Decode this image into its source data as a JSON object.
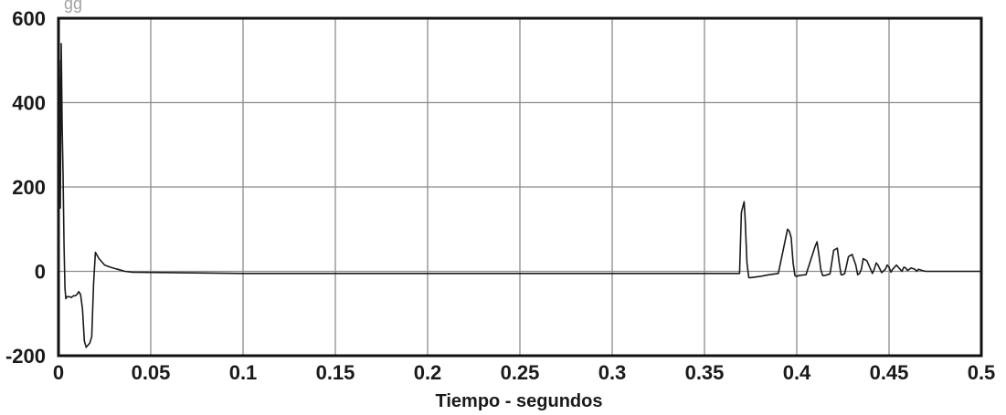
{
  "chart_data": {
    "type": "line",
    "title": "",
    "top_fragment": "gg",
    "xlabel": "Tiempo - segundos",
    "ylabel": "",
    "xlim": [
      0,
      0.5
    ],
    "ylim": [
      -200,
      600
    ],
    "grid": true,
    "legend": "none",
    "x_ticks": [
      0,
      0.05,
      0.1,
      0.15,
      0.2,
      0.25,
      0.3,
      0.35,
      0.4,
      0.45,
      0.5
    ],
    "x_tick_labels": [
      "0",
      "0.05",
      "0.1",
      "0.15",
      "0.2",
      "0.25",
      "0.3",
      "0.35",
      "0.4",
      "0.45",
      "0.5"
    ],
    "y_ticks": [
      -200,
      0,
      200,
      400,
      600
    ],
    "y_tick_labels": [
      "-200",
      "0",
      "200",
      "400",
      "600"
    ],
    "colors": {
      "line": "#1a1a1a",
      "grid": "#8c8c8c",
      "frame": "#111111"
    },
    "series": [
      {
        "x": [
          0,
          0.0005,
          0.001,
          0.0015,
          0.002,
          0.0025,
          0.003,
          0.0035,
          0.004,
          0.0045,
          0.005,
          0.006,
          0.007,
          0.008,
          0.009,
          0.01,
          0.011,
          0.012,
          0.013,
          0.014,
          0.015,
          0.016,
          0.017,
          0.018,
          0.019,
          0.02,
          0.022,
          0.025,
          0.028,
          0.032,
          0.036,
          0.04,
          0.1,
          0.2,
          0.3,
          0.36,
          0.369,
          0.37,
          0.3715,
          0.372,
          0.373,
          0.374,
          0.375,
          0.38,
          0.385,
          0.39,
          0.395,
          0.396,
          0.397,
          0.398,
          0.399,
          0.4,
          0.401,
          0.405,
          0.41,
          0.411,
          0.412,
          0.413,
          0.414,
          0.415,
          0.418,
          0.42,
          0.422,
          0.423,
          0.424,
          0.425,
          0.426,
          0.428,
          0.43,
          0.432,
          0.433,
          0.434,
          0.435,
          0.436,
          0.438,
          0.44,
          0.441,
          0.442,
          0.443,
          0.444,
          0.446,
          0.448,
          0.449,
          0.45,
          0.451,
          0.452,
          0.454,
          0.456,
          0.457,
          0.458,
          0.459,
          0.46,
          0.462,
          0.464,
          0.465,
          0.466,
          0.468,
          0.47,
          0.472,
          0.475,
          0.48,
          0.5
        ],
        "y": [
          0,
          500,
          150,
          540,
          350,
          230,
          60,
          -40,
          -65,
          -60,
          -60,
          -60,
          -62,
          -58,
          -58,
          -55,
          -48,
          -55,
          -90,
          -165,
          -180,
          -175,
          -170,
          -155,
          -30,
          45,
          30,
          15,
          10,
          5,
          0,
          -2,
          -5,
          -5,
          -5,
          -5,
          -5,
          140,
          165,
          130,
          20,
          -15,
          -15,
          -12,
          -8,
          -5,
          100,
          95,
          80,
          20,
          -10,
          -12,
          -10,
          -8,
          60,
          70,
          40,
          5,
          -10,
          -10,
          -6,
          50,
          55,
          20,
          -8,
          -8,
          -5,
          35,
          40,
          15,
          -8,
          -5,
          5,
          30,
          25,
          5,
          -5,
          5,
          20,
          15,
          -3,
          5,
          15,
          10,
          -2,
          5,
          15,
          5,
          0,
          10,
          8,
          2,
          8,
          5,
          0,
          5,
          2,
          0,
          0,
          0,
          0,
          0
        ]
      }
    ]
  }
}
